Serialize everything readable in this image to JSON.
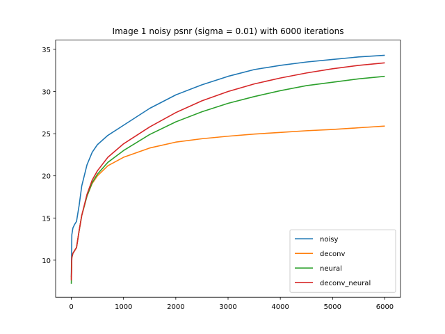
{
  "chart_data": {
    "type": "line",
    "title": "Image 1 noisy psnr (sigma = 0.01) with 6000 iterations",
    "xlabel": "",
    "ylabel": "",
    "xlim": [
      -300,
      6300
    ],
    "ylim": [
      5.6,
      36.1
    ],
    "xticks": [
      0,
      1000,
      2000,
      3000,
      4000,
      5000,
      6000
    ],
    "yticks": [
      10,
      15,
      20,
      25,
      30,
      35
    ],
    "grid": false,
    "legend_position": "lower right",
    "x": [
      0,
      10,
      30,
      60,
      100,
      150,
      200,
      300,
      400,
      500,
      700,
      1000,
      1500,
      2000,
      2500,
      3000,
      3500,
      4000,
      4500,
      5000,
      5500,
      6000
    ],
    "series": [
      {
        "name": "noisy",
        "color": "#1f77b4",
        "values": [
          8.0,
          13.0,
          13.8,
          14.2,
          14.6,
          16.5,
          18.8,
          21.3,
          22.8,
          23.7,
          24.8,
          26.0,
          28.0,
          29.6,
          30.8,
          31.8,
          32.6,
          33.1,
          33.5,
          33.8,
          34.1,
          34.3
        ]
      },
      {
        "name": "deconv",
        "color": "#ff7f0e",
        "values": [
          7.8,
          10.3,
          10.8,
          11.1,
          11.5,
          13.5,
          15.3,
          17.6,
          19.1,
          20.0,
          21.2,
          22.2,
          23.3,
          24.0,
          24.4,
          24.7,
          24.95,
          25.15,
          25.35,
          25.5,
          25.7,
          25.9
        ]
      },
      {
        "name": "neural",
        "color": "#2ca02c",
        "values": [
          7.2,
          10.3,
          10.8,
          11.1,
          11.5,
          13.5,
          15.3,
          17.6,
          19.2,
          20.2,
          21.6,
          23.0,
          24.9,
          26.4,
          27.6,
          28.6,
          29.4,
          30.1,
          30.7,
          31.1,
          31.5,
          31.8
        ]
      },
      {
        "name": "deconv_neural",
        "color": "#d62728",
        "values": [
          7.6,
          10.3,
          10.8,
          11.1,
          11.5,
          13.5,
          15.3,
          17.8,
          19.5,
          20.6,
          22.2,
          23.8,
          25.8,
          27.5,
          28.9,
          30.0,
          30.9,
          31.6,
          32.2,
          32.7,
          33.1,
          33.4
        ]
      }
    ]
  }
}
